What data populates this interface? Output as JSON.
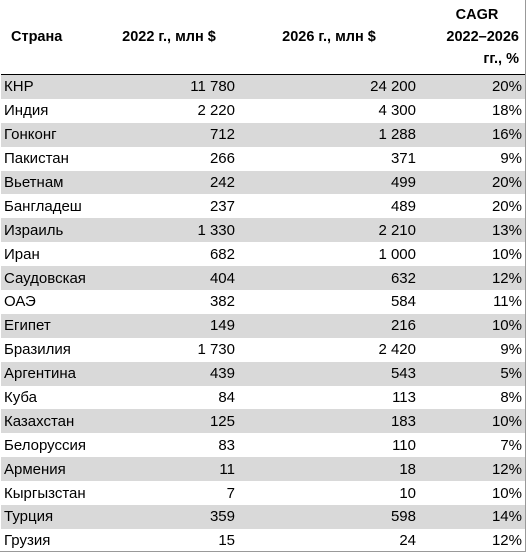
{
  "table": {
    "headers": {
      "country": "Страна",
      "y2022": "2022 г., млн $",
      "y2026": "2026 г., млн $",
      "cagr_line1": "CAGR",
      "cagr_line2": "2022–2026",
      "cagr_line3": "гг., %"
    },
    "rows": [
      {
        "country": "КНР",
        "v2022": "11 780",
        "v2026": "24 200",
        "cagr": "20%"
      },
      {
        "country": "Индия",
        "v2022": "2 220",
        "v2026": "4 300",
        "cagr": "18%"
      },
      {
        "country": "Гонконг",
        "v2022": "712",
        "v2026": "1 288",
        "cagr": "16%"
      },
      {
        "country": "Пакистан",
        "v2022": "266",
        "v2026": "371",
        "cagr": "9%"
      },
      {
        "country": "Вьетнам",
        "v2022": "242",
        "v2026": "499",
        "cagr": "20%"
      },
      {
        "country": "Бангладеш",
        "v2022": "237",
        "v2026": "489",
        "cagr": "20%"
      },
      {
        "country": "Израиль",
        "v2022": "1 330",
        "v2026": "2 210",
        "cagr": "13%"
      },
      {
        "country": "Иран",
        "v2022": "682",
        "v2026": "1 000",
        "cagr": "10%"
      },
      {
        "country": "Саудовская",
        "v2022": "404",
        "v2026": "632",
        "cagr": "12%"
      },
      {
        "country": "ОАЭ",
        "v2022": "382",
        "v2026": "584",
        "cagr": "11%"
      },
      {
        "country": "Египет",
        "v2022": "149",
        "v2026": "216",
        "cagr": "10%"
      },
      {
        "country": "Бразилия",
        "v2022": "1 730",
        "v2026": "2 420",
        "cagr": "9%"
      },
      {
        "country": "Аргентина",
        "v2022": "439",
        "v2026": "543",
        "cagr": "5%"
      },
      {
        "country": "Куба",
        "v2022": "84",
        "v2026": "113",
        "cagr": "8%"
      },
      {
        "country": "Казахстан",
        "v2022": "125",
        "v2026": "183",
        "cagr": "10%"
      },
      {
        "country": "Белоруссия",
        "v2022": "83",
        "v2026": "110",
        "cagr": "7%"
      },
      {
        "country": "Армения",
        "v2022": "11",
        "v2026": "18",
        "cagr": "12%"
      },
      {
        "country": "Кыргызстан",
        "v2022": "7",
        "v2026": "10",
        "cagr": "10%"
      },
      {
        "country": "Турция",
        "v2022": "359",
        "v2026": "598",
        "cagr": "14%"
      },
      {
        "country": "Грузия",
        "v2022": "15",
        "v2026": "24",
        "cagr": "12%"
      }
    ]
  }
}
